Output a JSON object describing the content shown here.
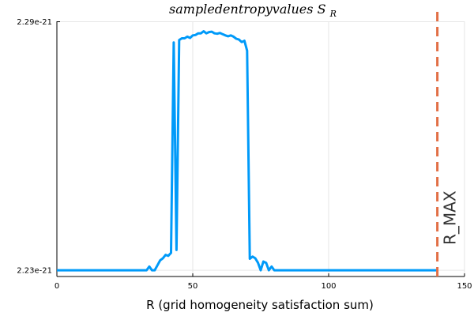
{
  "chart_data": {
    "type": "line",
    "title": "sampled entropy values S_R",
    "xlabel": "R (grid homogeneity satisfaction sum)",
    "ylabel": "",
    "xlim": [
      0,
      150
    ],
    "ylim": [
      2.2285e-21,
      2.2901e-21
    ],
    "x_ticks": [
      0,
      50,
      100,
      150
    ],
    "x_tick_labels": [
      "0",
      "50",
      "100",
      "150"
    ],
    "y_ticks": [
      2.23e-21,
      2.29e-21
    ],
    "y_tick_labels": [
      "2.23e-21",
      "2.29e-21"
    ],
    "grid": true,
    "legend": "none",
    "colors": {
      "series": "#009af9",
      "vline": "#e26f46"
    },
    "series": [
      {
        "x": [
          0,
          33,
          34,
          35,
          36,
          37,
          38,
          39,
          40,
          41,
          42,
          43,
          44,
          45,
          46,
          47,
          48,
          49,
          50,
          51,
          52,
          53,
          54,
          55,
          56,
          57,
          58,
          59,
          60,
          61,
          62,
          63,
          64,
          65,
          66,
          67,
          68,
          69,
          70,
          71,
          72,
          73,
          74,
          75,
          76,
          77,
          78,
          79,
          80,
          81,
          140
        ],
        "y": [
          2.23e-21,
          2.23e-21,
          2.2309e-21,
          2.23e-21,
          2.23e-21,
          2.2312e-21,
          2.2324e-21,
          2.2329e-21,
          2.2337e-21,
          2.2335e-21,
          2.2342e-21,
          2.285e-21,
          2.2349e-21,
          2.2856e-21,
          2.286e-21,
          2.286e-21,
          2.2864e-21,
          2.2861e-21,
          2.2867e-21,
          2.2868e-21,
          2.2872e-21,
          2.2872e-21,
          2.2877e-21,
          2.2872e-21,
          2.2875e-21,
          2.2876e-21,
          2.2872e-21,
          2.2871e-21,
          2.2873e-21,
          2.287e-21,
          2.2867e-21,
          2.2865e-21,
          2.2867e-21,
          2.2864e-21,
          2.2859e-21,
          2.2857e-21,
          2.2851e-21,
          2.2854e-21,
          2.283e-21,
          2.2328e-21,
          2.2333e-21,
          2.2329e-21,
          2.2318e-21,
          2.23e-21,
          2.2321e-21,
          2.2318e-21,
          2.23e-21,
          2.2309e-21,
          2.23e-21,
          2.23e-21,
          2.23e-21
        ]
      }
    ],
    "vlines": [
      {
        "x": 140,
        "label": "R_MAX"
      }
    ]
  }
}
